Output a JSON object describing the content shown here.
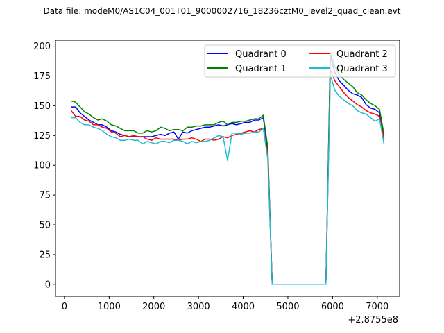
{
  "chart_data": {
    "type": "line",
    "title": "Data file: modeM0/AS1C04_001T01_9000002716_18236cztM0_level2_quad_clean.evt",
    "xlabel": "",
    "ylabel": "",
    "x_offset_label": "+2.8755e8",
    "xlim": [
      -200,
      7500
    ],
    "ylim": [
      -10,
      205
    ],
    "x_ticks": [
      0,
      1000,
      2000,
      3000,
      4000,
      5000,
      6000,
      7000
    ],
    "y_ticks": [
      0,
      25,
      50,
      75,
      100,
      125,
      150,
      175,
      200
    ],
    "x_tick_labels": [
      "0",
      "1000",
      "2000",
      "3000",
      "4000",
      "5000",
      "6000",
      "7000"
    ],
    "y_tick_labels": [
      "0",
      "25",
      "50",
      "75",
      "100",
      "125",
      "150",
      "175",
      "200"
    ],
    "grid": false,
    "legend": {
      "placement": "top-right",
      "columns": 2
    },
    "series": [
      {
        "name": "Quadrant 0",
        "color": "#0000ff",
        "points": [
          [
            150,
            149
          ],
          [
            250,
            149
          ],
          [
            350,
            144
          ],
          [
            450,
            141
          ],
          [
            550,
            138
          ],
          [
            650,
            136
          ],
          [
            750,
            134
          ],
          [
            850,
            134
          ],
          [
            950,
            132
          ],
          [
            1050,
            129
          ],
          [
            1150,
            128
          ],
          [
            1250,
            126
          ],
          [
            1350,
            125
          ],
          [
            1450,
            124
          ],
          [
            1550,
            124
          ],
          [
            1650,
            124
          ],
          [
            1750,
            124
          ],
          [
            1850,
            124
          ],
          [
            1950,
            124
          ],
          [
            2050,
            125
          ],
          [
            2150,
            126
          ],
          [
            2250,
            125
          ],
          [
            2350,
            127
          ],
          [
            2450,
            128
          ],
          [
            2550,
            122
          ],
          [
            2650,
            128
          ],
          [
            2750,
            127
          ],
          [
            2850,
            129
          ],
          [
            2950,
            130
          ],
          [
            3050,
            131
          ],
          [
            3150,
            132
          ],
          [
            3250,
            132
          ],
          [
            3350,
            133
          ],
          [
            3450,
            134
          ],
          [
            3550,
            133
          ],
          [
            3650,
            134
          ],
          [
            3750,
            135
          ],
          [
            3850,
            134
          ],
          [
            3950,
            135
          ],
          [
            4050,
            136
          ],
          [
            4150,
            136
          ],
          [
            4250,
            138
          ],
          [
            4350,
            138
          ],
          [
            4450,
            140
          ],
          [
            4550,
            112
          ],
          [
            4650,
            0
          ],
          [
            5750,
            0
          ],
          [
            5850,
            0
          ],
          [
            5950,
            192
          ],
          [
            6050,
            178
          ],
          [
            6150,
            171
          ],
          [
            6250,
            167
          ],
          [
            6350,
            163
          ],
          [
            6450,
            160
          ],
          [
            6550,
            159
          ],
          [
            6650,
            157
          ],
          [
            6750,
            151
          ],
          [
            6850,
            148
          ],
          [
            6950,
            147
          ],
          [
            7050,
            144
          ],
          [
            7150,
            123
          ]
        ]
      },
      {
        "name": "Quadrant 1",
        "color": "#008000",
        "points": [
          [
            150,
            154
          ],
          [
            250,
            153
          ],
          [
            350,
            149
          ],
          [
            450,
            145
          ],
          [
            550,
            143
          ],
          [
            650,
            140
          ],
          [
            750,
            138
          ],
          [
            850,
            139
          ],
          [
            950,
            137
          ],
          [
            1050,
            134
          ],
          [
            1150,
            133
          ],
          [
            1250,
            131
          ],
          [
            1350,
            129
          ],
          [
            1450,
            129
          ],
          [
            1550,
            129
          ],
          [
            1650,
            127
          ],
          [
            1750,
            127
          ],
          [
            1850,
            129
          ],
          [
            1950,
            128
          ],
          [
            2050,
            129
          ],
          [
            2150,
            132
          ],
          [
            2250,
            131
          ],
          [
            2350,
            129
          ],
          [
            2450,
            130
          ],
          [
            2550,
            130
          ],
          [
            2650,
            129
          ],
          [
            2750,
            132
          ],
          [
            2850,
            132
          ],
          [
            2950,
            133
          ],
          [
            3050,
            133
          ],
          [
            3150,
            134
          ],
          [
            3250,
            134
          ],
          [
            3350,
            134
          ],
          [
            3450,
            136
          ],
          [
            3550,
            137
          ],
          [
            3650,
            134
          ],
          [
            3750,
            136
          ],
          [
            3850,
            136
          ],
          [
            3950,
            137
          ],
          [
            4050,
            137
          ],
          [
            4150,
            138
          ],
          [
            4250,
            139
          ],
          [
            4350,
            139
          ],
          [
            4450,
            142
          ],
          [
            4550,
            115
          ],
          [
            4650,
            0
          ],
          [
            5750,
            0
          ],
          [
            5850,
            0
          ],
          [
            5950,
            194
          ],
          [
            6050,
            183
          ],
          [
            6150,
            176
          ],
          [
            6250,
            172
          ],
          [
            6350,
            169
          ],
          [
            6450,
            166
          ],
          [
            6550,
            161
          ],
          [
            6650,
            159
          ],
          [
            6750,
            155
          ],
          [
            6850,
            152
          ],
          [
            6950,
            150
          ],
          [
            7050,
            147
          ],
          [
            7150,
            126
          ]
        ]
      },
      {
        "name": "Quadrant 2",
        "color": "#ff0000",
        "points": [
          [
            150,
            146
          ],
          [
            250,
            141
          ],
          [
            350,
            141
          ],
          [
            450,
            138
          ],
          [
            550,
            137
          ],
          [
            650,
            134
          ],
          [
            750,
            134
          ],
          [
            850,
            132
          ],
          [
            950,
            131
          ],
          [
            1050,
            128
          ],
          [
            1150,
            127
          ],
          [
            1250,
            124
          ],
          [
            1350,
            125
          ],
          [
            1450,
            124
          ],
          [
            1550,
            125
          ],
          [
            1650,
            124
          ],
          [
            1750,
            124
          ],
          [
            1850,
            122
          ],
          [
            1950,
            121
          ],
          [
            2050,
            123
          ],
          [
            2150,
            122
          ],
          [
            2250,
            122
          ],
          [
            2350,
            122
          ],
          [
            2450,
            122
          ],
          [
            2550,
            121
          ],
          [
            2650,
            122
          ],
          [
            2750,
            122
          ],
          [
            2850,
            123
          ],
          [
            2950,
            122
          ],
          [
            3050,
            120
          ],
          [
            3150,
            122
          ],
          [
            3250,
            122
          ],
          [
            3350,
            121
          ],
          [
            3450,
            122
          ],
          [
            3550,
            124
          ],
          [
            3650,
            123
          ],
          [
            3750,
            125
          ],
          [
            3850,
            126
          ],
          [
            3950,
            127
          ],
          [
            4050,
            128
          ],
          [
            4150,
            129
          ],
          [
            4250,
            128
          ],
          [
            4350,
            130
          ],
          [
            4450,
            131
          ],
          [
            4550,
            109
          ],
          [
            4650,
            0
          ],
          [
            5750,
            0
          ],
          [
            5850,
            0
          ],
          [
            5950,
            180
          ],
          [
            6050,
            171
          ],
          [
            6150,
            166
          ],
          [
            6250,
            161
          ],
          [
            6350,
            157
          ],
          [
            6450,
            154
          ],
          [
            6550,
            151
          ],
          [
            6650,
            149
          ],
          [
            6750,
            146
          ],
          [
            6850,
            144
          ],
          [
            6950,
            143
          ],
          [
            7050,
            141
          ],
          [
            7150,
            122
          ]
        ]
      },
      {
        "name": "Quadrant 3",
        "color": "#17becf",
        "points": [
          [
            150,
            140
          ],
          [
            250,
            140
          ],
          [
            350,
            136
          ],
          [
            450,
            134
          ],
          [
            550,
            134
          ],
          [
            650,
            132
          ],
          [
            750,
            131
          ],
          [
            850,
            129
          ],
          [
            950,
            126
          ],
          [
            1050,
            124
          ],
          [
            1150,
            123
          ],
          [
            1250,
            121
          ],
          [
            1350,
            121
          ],
          [
            1450,
            122
          ],
          [
            1550,
            121
          ],
          [
            1650,
            121
          ],
          [
            1750,
            118
          ],
          [
            1850,
            120
          ],
          [
            1950,
            119
          ],
          [
            2050,
            118
          ],
          [
            2150,
            120
          ],
          [
            2250,
            120
          ],
          [
            2350,
            119
          ],
          [
            2450,
            121
          ],
          [
            2550,
            121
          ],
          [
            2650,
            120
          ],
          [
            2750,
            118
          ],
          [
            2850,
            120
          ],
          [
            2950,
            119
          ],
          [
            3050,
            120
          ],
          [
            3150,
            120
          ],
          [
            3250,
            121
          ],
          [
            3350,
            123
          ],
          [
            3450,
            125
          ],
          [
            3550,
            124
          ],
          [
            3650,
            104
          ],
          [
            3750,
            127
          ],
          [
            3850,
            127
          ],
          [
            3950,
            126
          ],
          [
            4050,
            127
          ],
          [
            4150,
            127
          ],
          [
            4250,
            128
          ],
          [
            4350,
            128
          ],
          [
            4450,
            131
          ],
          [
            4550,
            105
          ],
          [
            4650,
            0
          ],
          [
            5750,
            0
          ],
          [
            5850,
            0
          ],
          [
            5950,
            176
          ],
          [
            6050,
            163
          ],
          [
            6150,
            158
          ],
          [
            6250,
            155
          ],
          [
            6350,
            152
          ],
          [
            6450,
            150
          ],
          [
            6550,
            146
          ],
          [
            6650,
            144
          ],
          [
            6750,
            143
          ],
          [
            6850,
            140
          ],
          [
            6950,
            137
          ],
          [
            7050,
            139
          ],
          [
            7150,
            118
          ]
        ]
      }
    ]
  }
}
